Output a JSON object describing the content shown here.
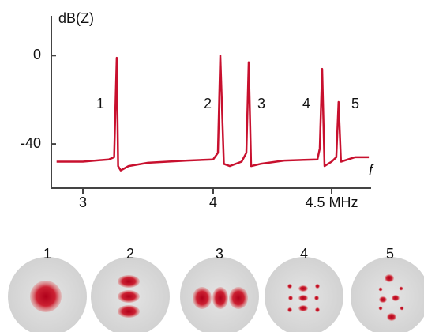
{
  "chart_data": {
    "type": "line",
    "ylabel": "dB(Z)",
    "xlabel": "f",
    "color": "#c8102e",
    "x": [
      2.8,
      3.0,
      3.2,
      3.24,
      3.26,
      3.27,
      3.29,
      3.35,
      3.5,
      3.8,
      4.0,
      4.02,
      4.03,
      4.045,
      4.07,
      4.12,
      4.14,
      4.15,
      4.16,
      4.2,
      4.3,
      4.44,
      4.45,
      4.46,
      4.47,
      4.5,
      4.52,
      4.53,
      4.54,
      4.6,
      4.66
    ],
    "values": [
      -48,
      -48,
      -47,
      -46,
      -1,
      -50,
      -52,
      -50,
      -48.5,
      -47.5,
      -47,
      -44,
      0,
      -49,
      -50,
      -48,
      -44,
      -3,
      -50,
      -49,
      -47.5,
      -47,
      -42,
      -6,
      -50,
      -48,
      -46,
      -21,
      -48,
      -46,
      -46
    ],
    "xlim": [
      2.76,
      4.67
    ],
    "xticks": [
      3,
      4,
      {
        "value": 4.5,
        "label": "4.5 MHz"
      }
    ],
    "ylim": [
      -60,
      18
    ],
    "yticks": [
      0,
      -40
    ],
    "peak_labels": [
      "1",
      "2",
      "3",
      "4",
      "5"
    ],
    "mode_labels": [
      "1",
      "2",
      "3",
      "4",
      "5"
    ]
  }
}
